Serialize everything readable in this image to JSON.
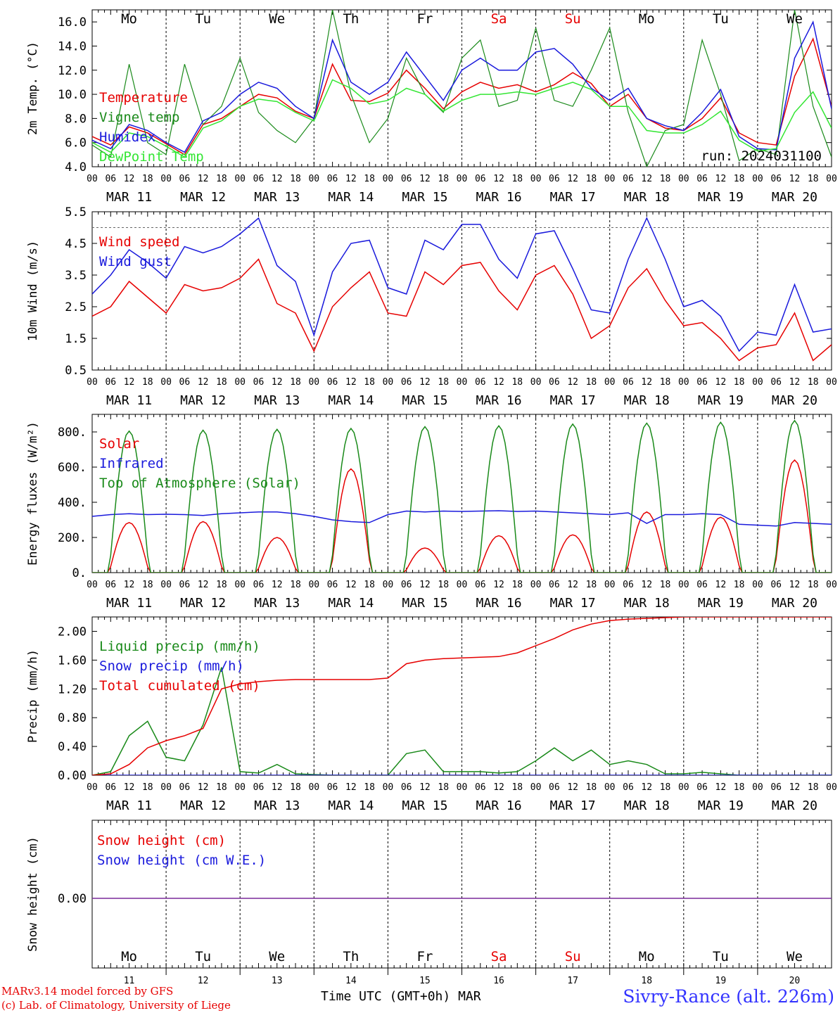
{
  "run_label": "run: 2024031100",
  "footer": {
    "credit_line1": "MARv3.14 model forced by GFS",
    "credit_line2": "(c) Lab. of Climatology, University of Liege",
    "x_axis_label": "Time UTC (GMT+0h) MAR",
    "station": "Sivry-Rance (alt. 226m)"
  },
  "time_axis": {
    "hour_ticks": [
      "00",
      "06",
      "12",
      "18"
    ],
    "date_labels": [
      "MAR 11",
      "MAR 12",
      "MAR 13",
      "MAR 14",
      "MAR 15",
      "MAR 16",
      "MAR 17",
      "MAR 18",
      "MAR 19",
      "MAR 20"
    ],
    "weekdays": [
      "Mo",
      "Tu",
      "We",
      "Th",
      "Fr",
      "Sa",
      "Su",
      "Mo",
      "Tu",
      "We"
    ],
    "weekday_colors": [
      "#000000",
      "#000000",
      "#000000",
      "#000000",
      "#000000",
      "#e60000",
      "#e60000",
      "#000000",
      "#000000",
      "#000000"
    ],
    "day_numbers": [
      "11",
      "12",
      "13",
      "14",
      "15",
      "16",
      "17",
      "18",
      "19",
      "20"
    ]
  },
  "colors": {
    "red": "#e60000",
    "darkgreen": "#1a8a1a",
    "blue": "#1a1adc",
    "lightgreen": "#33e633",
    "purple": "#7a2a9a"
  },
  "chart_data": [
    {
      "type": "line",
      "ylabel": "2m Temp. (°C)",
      "ylim": [
        4.0,
        17.0
      ],
      "yticks": [
        "4.0",
        "6.0",
        "8.0",
        "10.0",
        "12.0",
        "14.0",
        "16.0"
      ],
      "ytick_values": [
        4,
        6,
        8,
        10,
        12,
        14,
        16
      ],
      "x": [
        0,
        6,
        12,
        18,
        24,
        30,
        36,
        42,
        48,
        54,
        60,
        66,
        72,
        78,
        84,
        90,
        96,
        102,
        108,
        114,
        120,
        126,
        132,
        138,
        144,
        150,
        156,
        162,
        168,
        174,
        180,
        186,
        192,
        198,
        204,
        210,
        216,
        222,
        228,
        234,
        240
      ],
      "series": [
        {
          "name": "Temperature",
          "color": "#e60000",
          "values": [
            6.5,
            5.8,
            7.3,
            6.8,
            5.9,
            5.0,
            7.5,
            8.0,
            9.0,
            10.0,
            9.7,
            8.6,
            8.0,
            12.5,
            9.5,
            9.4,
            10.1,
            12.0,
            10.5,
            8.8,
            10.2,
            11.0,
            10.5,
            10.8,
            10.2,
            10.8,
            11.8,
            10.9,
            9.0,
            10.0,
            8.0,
            7.2,
            7.0,
            8.0,
            9.7,
            6.8,
            6.0,
            5.8,
            11.5,
            14.6,
            9.0
          ],
          "weekday_marker": "Mo"
        },
        {
          "name": "Vigne temp",
          "color": "#1a8a1a",
          "values": [
            5.8,
            4.8,
            12.5,
            6.0,
            5.0,
            12.5,
            7.5,
            9.0,
            13.0,
            8.5,
            7.0,
            6.0,
            8.0,
            17.0,
            10.0,
            6.0,
            8.0,
            13.0,
            10.0,
            8.5,
            13.0,
            14.5,
            9.0,
            9.5,
            15.5,
            9.5,
            9.0,
            12.0,
            15.5,
            8.5,
            4.0,
            7.0,
            7.5,
            14.5,
            10.0,
            4.5,
            5.5,
            5.0,
            17.0,
            9.0,
            4.8
          ]
        },
        {
          "name": "Humidex",
          "color": "#1a1adc",
          "values": [
            6.2,
            5.5,
            7.5,
            7.0,
            6.0,
            5.2,
            7.8,
            8.5,
            10.0,
            11.0,
            10.5,
            9.0,
            8.0,
            14.5,
            11.0,
            10.0,
            11.0,
            13.5,
            11.5,
            9.5,
            12.0,
            13.0,
            12.0,
            12.0,
            13.5,
            13.8,
            12.5,
            10.5,
            9.5,
            10.5,
            8.0,
            7.4,
            7.0,
            8.5,
            10.4,
            6.5,
            5.5,
            5.4,
            13.0,
            16.0,
            8.8
          ]
        },
        {
          "name": "DewPoint Temp",
          "color": "#33e633",
          "values": [
            6.0,
            5.2,
            6.8,
            6.5,
            5.7,
            4.8,
            7.2,
            7.8,
            9.0,
            9.6,
            9.4,
            8.5,
            7.8,
            11.2,
            10.5,
            9.2,
            9.5,
            10.5,
            10.0,
            8.6,
            9.5,
            10.0,
            10.0,
            10.2,
            10.0,
            10.5,
            11.0,
            10.4,
            9.0,
            9.0,
            7.0,
            6.8,
            6.8,
            7.5,
            8.6,
            6.2,
            5.3,
            5.5,
            8.5,
            10.2,
            7.2
          ]
        }
      ]
    },
    {
      "type": "line",
      "ylabel": "10m Wind (m/s)",
      "ylim": [
        0.5,
        5.5
      ],
      "yticks": [
        "0.5",
        "1.5",
        "2.5",
        "3.5",
        "4.5",
        "5.5"
      ],
      "ytick_values": [
        0.5,
        1.5,
        2.5,
        3.5,
        4.5,
        5.5
      ],
      "reference_line": 5.0,
      "x": [
        0,
        6,
        12,
        18,
        24,
        30,
        36,
        42,
        48,
        54,
        60,
        66,
        72,
        78,
        84,
        90,
        96,
        102,
        108,
        114,
        120,
        126,
        132,
        138,
        144,
        150,
        156,
        162,
        168,
        174,
        180,
        186,
        192,
        198,
        204,
        210,
        216,
        222,
        228,
        234,
        240
      ],
      "series": [
        {
          "name": "Wind speed",
          "color": "#e60000",
          "values": [
            2.2,
            2.5,
            3.3,
            2.8,
            2.3,
            3.2,
            3.0,
            3.1,
            3.4,
            4.0,
            2.6,
            2.3,
            1.1,
            2.5,
            3.1,
            3.6,
            2.3,
            2.2,
            3.6,
            3.2,
            3.8,
            3.9,
            3.0,
            2.4,
            3.5,
            3.8,
            2.9,
            1.5,
            1.9,
            3.1,
            3.7,
            2.7,
            1.9,
            2.0,
            1.5,
            0.8,
            1.2,
            1.3,
            2.3,
            0.8,
            1.3
          ]
        },
        {
          "name": "Wind gust",
          "color": "#1a1adc",
          "values": [
            2.9,
            3.5,
            4.3,
            3.9,
            3.4,
            4.4,
            4.2,
            4.4,
            4.8,
            5.3,
            3.8,
            3.3,
            1.6,
            3.6,
            4.5,
            4.6,
            3.1,
            2.9,
            4.6,
            4.3,
            5.1,
            5.1,
            4.0,
            3.4,
            4.8,
            4.9,
            3.7,
            2.4,
            2.3,
            4.0,
            5.3,
            4.0,
            2.5,
            2.7,
            2.2,
            1.1,
            1.7,
            1.6,
            3.2,
            1.7,
            1.8
          ]
        }
      ]
    },
    {
      "type": "line",
      "ylabel": "Energy fluxes (W/m²)",
      "ylim": [
        0,
        900
      ],
      "yticks": [
        "0.",
        "200.",
        "400.",
        "600.",
        "800."
      ],
      "ytick_values": [
        0,
        200,
        400,
        600,
        800
      ],
      "x_hours": 240,
      "series": [
        {
          "name": "Solar",
          "color": "#e60000",
          "daily_peaks": [
            285,
            290,
            200,
            590,
            140,
            210,
            215,
            345,
            315,
            640
          ]
        },
        {
          "name": "Infrared",
          "color": "#1a1adc",
          "values": [
            320,
            330,
            335,
            330,
            332,
            330,
            325,
            335,
            340,
            345,
            345,
            335,
            320,
            300,
            290,
            285,
            330,
            350,
            345,
            350,
            348,
            350,
            352,
            348,
            350,
            345,
            340,
            335,
            330,
            340,
            280,
            330,
            330,
            335,
            330,
            275,
            270,
            265,
            285,
            280,
            275
          ]
        },
        {
          "name": "Top of Atmosphere (Solar)",
          "color": "#1a8a1a",
          "daily_peaks": [
            805,
            810,
            815,
            820,
            830,
            835,
            845,
            850,
            855,
            865
          ]
        }
      ]
    },
    {
      "type": "line",
      "ylabel": "Precip (mm/h)",
      "ylim": [
        0,
        2.2
      ],
      "yticks": [
        "0.00",
        "0.40",
        "0.80",
        "1.20",
        "1.60",
        "2.00"
      ],
      "ytick_values": [
        0,
        0.4,
        0.8,
        1.2,
        1.6,
        2.0
      ],
      "x": [
        0,
        6,
        12,
        18,
        24,
        30,
        36,
        42,
        48,
        54,
        60,
        66,
        72,
        78,
        84,
        90,
        96,
        102,
        108,
        114,
        120,
        126,
        132,
        138,
        144,
        150,
        156,
        162,
        168,
        174,
        180,
        186,
        192,
        198,
        204,
        210,
        216,
        222,
        228,
        234,
        240
      ],
      "series": [
        {
          "name": "Liquid precip (mm/h)",
          "color": "#1a8a1a",
          "values": [
            0.0,
            0.05,
            0.55,
            0.75,
            0.25,
            0.2,
            0.7,
            1.5,
            0.05,
            0.03,
            0.15,
            0.02,
            0.01,
            0.0,
            0.0,
            0.0,
            0.0,
            0.3,
            0.35,
            0.05,
            0.05,
            0.05,
            0.03,
            0.05,
            0.2,
            0.38,
            0.2,
            0.35,
            0.15,
            0.2,
            0.15,
            0.02,
            0.02,
            0.04,
            0.02,
            0.0,
            0.0,
            0.0,
            0.0,
            0.0,
            0.0
          ]
        },
        {
          "name": "Snow precip (mm/h)",
          "color": "#1a1adc",
          "values": [
            0,
            0,
            0,
            0,
            0,
            0,
            0,
            0,
            0,
            0,
            0,
            0,
            0,
            0,
            0,
            0,
            0,
            0,
            0,
            0,
            0,
            0,
            0,
            0,
            0,
            0,
            0,
            0,
            0,
            0,
            0,
            0,
            0,
            0,
            0,
            0,
            0,
            0,
            0,
            0,
            0
          ]
        },
        {
          "name": "Total cumulated (cm)",
          "color": "#e60000",
          "values": [
            0.0,
            0.02,
            0.15,
            0.38,
            0.48,
            0.55,
            0.65,
            1.2,
            1.27,
            1.3,
            1.32,
            1.33,
            1.33,
            1.33,
            1.33,
            1.33,
            1.35,
            1.55,
            1.6,
            1.62,
            1.63,
            1.64,
            1.65,
            1.7,
            1.8,
            1.9,
            2.02,
            2.1,
            2.15,
            2.17,
            2.18,
            2.19,
            2.2,
            2.2,
            2.2,
            2.2,
            2.2,
            2.2,
            2.2,
            2.2,
            2.2
          ]
        }
      ]
    },
    {
      "type": "line",
      "ylabel": "Snow height (cm)",
      "yticks": [
        "0.00"
      ],
      "ytick_values": [
        0
      ],
      "series": [
        {
          "name": "Snow height (cm)",
          "color": "#e60000",
          "values": [
            0,
            0
          ]
        },
        {
          "name": "Snow height (cm W.E.)",
          "color": "#1a1adc",
          "values": [
            0,
            0
          ]
        }
      ]
    }
  ]
}
